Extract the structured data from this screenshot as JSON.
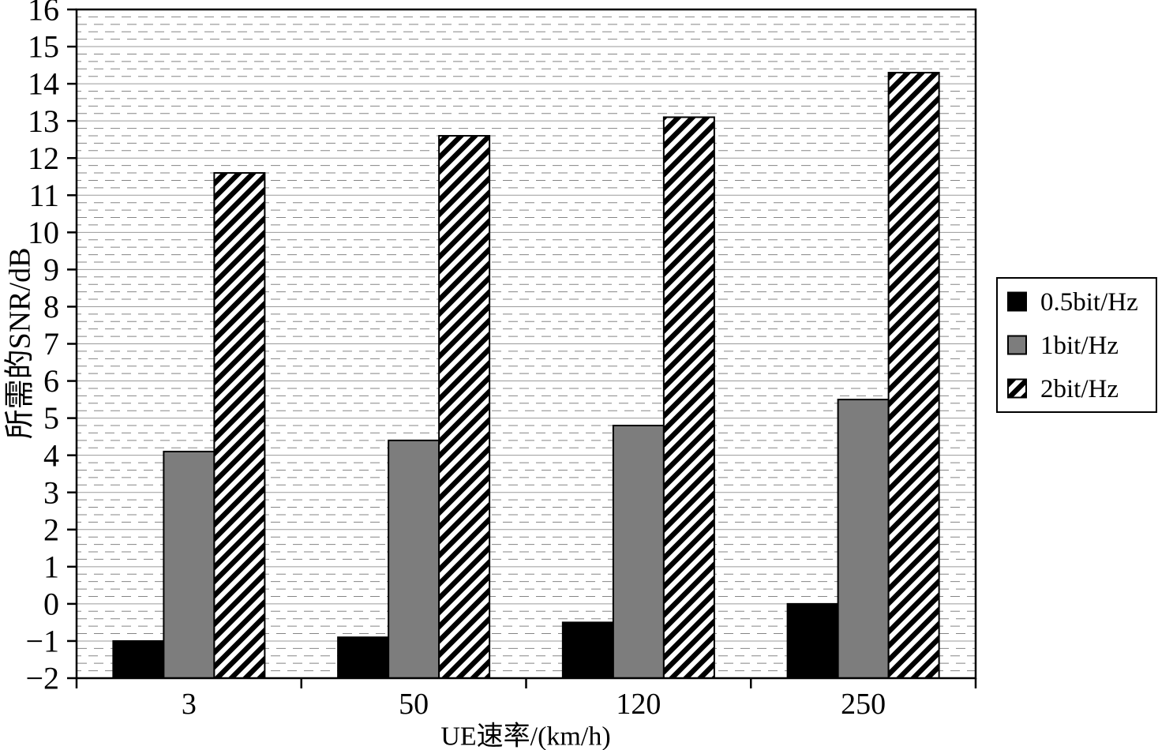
{
  "chart_data": {
    "type": "bar",
    "categories": [
      "3",
      "50",
      "120",
      "250"
    ],
    "series": [
      {
        "name": "0.5bit/Hz",
        "style": "solid-black",
        "values": [
          -1.0,
          -0.9,
          -0.5,
          0.0
        ]
      },
      {
        "name": "1bit/Hz",
        "style": "solid-gray",
        "values": [
          4.1,
          4.4,
          4.8,
          5.5
        ]
      },
      {
        "name": "2bit/Hz",
        "style": "hatched",
        "values": [
          11.6,
          12.6,
          13.1,
          14.3
        ]
      }
    ],
    "xlabel": "UE速率/(km/h)",
    "ylabel": "所需的SNR/dB",
    "ylim": [
      -2,
      16
    ],
    "y_major_step": 1,
    "y_minor_step": 0.2,
    "bar_base": -2,
    "grid": {
      "major": "solid",
      "minor": "dashed"
    },
    "legend_position": "right"
  },
  "colors": {
    "background": "#ffffff",
    "bar_black": "#000000",
    "bar_gray": "#7d7d7d",
    "bar_outline": "#000000",
    "hatch_stripe": "#000000",
    "major_grid": "#9a9a9a",
    "minor_grid": "#858585",
    "axis": "#000000"
  }
}
